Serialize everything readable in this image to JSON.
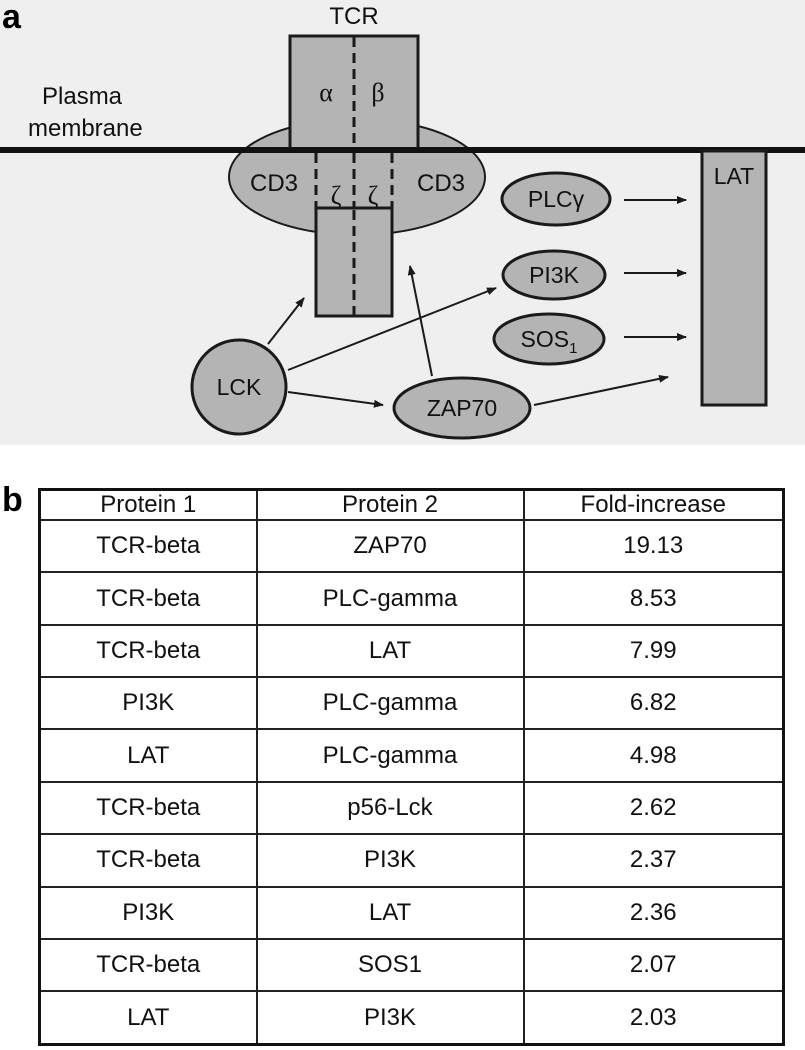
{
  "panel_a": {
    "letter": "a",
    "tcr_label": "TCR",
    "alpha": "α",
    "beta": "β",
    "zeta_left": "ζ",
    "zeta_right": "ζ",
    "plasma_membrane_line1": "Plasma",
    "plasma_membrane_line2": "membrane",
    "cd3_left": "CD3",
    "cd3_right": "CD3",
    "lck": "LCK",
    "zap70": "ZAP70",
    "plcg": "PLCγ",
    "pi3k": "PI3K",
    "sos1_main": "SOS",
    "sos1_sub": "1",
    "lat": "LAT",
    "colors": {
      "shape_fill": "#b4b4b4",
      "stroke": "#1a1a1a",
      "background": "#efefef"
    }
  },
  "panel_b": {
    "letter": "b",
    "headers": [
      "Protein 1",
      "Protein 2",
      "Fold-increase"
    ],
    "rows": [
      [
        "TCR-beta",
        "ZAP70",
        "19.13"
      ],
      [
        "TCR-beta",
        "PLC-gamma",
        "8.53"
      ],
      [
        "TCR-beta",
        "LAT",
        "7.99"
      ],
      [
        "PI3K",
        "PLC-gamma",
        "6.82"
      ],
      [
        "LAT",
        "PLC-gamma",
        "4.98"
      ],
      [
        "TCR-beta",
        "p56-Lck",
        "2.62"
      ],
      [
        "TCR-beta",
        "PI3K",
        "2.37"
      ],
      [
        "PI3K",
        "LAT",
        "2.36"
      ],
      [
        "TCR-beta",
        "SOS1",
        "2.07"
      ],
      [
        "LAT",
        "PI3K",
        "2.03"
      ]
    ]
  }
}
